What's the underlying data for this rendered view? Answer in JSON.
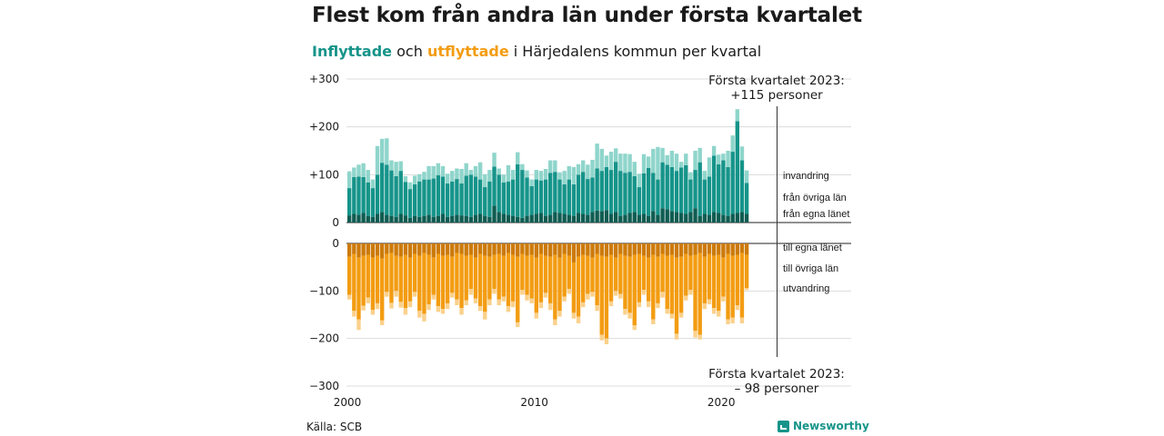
{
  "title": "Flest kom från andra län under första kvartalet",
  "subtitle": {
    "in_word": "Inflyttade",
    "mid1": " och ",
    "out_word": "utflyttade",
    "rest": " i Härjedalens kommun per kvartal"
  },
  "source": "Källa: SCB",
  "brand": "Newsworthy",
  "colors": {
    "in_local": "#0f5c52",
    "in_other": "#16948a",
    "in_immig": "#8fd5cb",
    "out_local": "#cc7a0a",
    "out_other": "#f39c12",
    "out_emig": "#fad18c"
  },
  "chart_data": {
    "type": "bar",
    "stacked": true,
    "x_ticks": [
      "2000",
      "2010",
      "2020"
    ],
    "x_ticks_years": [
      2000,
      2010,
      2020
    ],
    "first_year": 2000,
    "quarters_per_year": 4,
    "top_panel": {
      "y_range": [
        0,
        300
      ],
      "y_ticks": [
        0,
        100,
        200,
        300
      ],
      "y_tick_labels": [
        "0",
        "+100",
        "+200",
        "+300"
      ],
      "series": [
        {
          "name": "från egna länet",
          "values": [
            15,
            18,
            16,
            20,
            14,
            12,
            18,
            22,
            16,
            14,
            12,
            18,
            15,
            10,
            14,
            12,
            14,
            16,
            12,
            14,
            18,
            12,
            14,
            16,
            15,
            14,
            12,
            16,
            18,
            14,
            12,
            35,
            22,
            18,
            16,
            14,
            12,
            10,
            14,
            16,
            18,
            20,
            14,
            16,
            22,
            20,
            18,
            16,
            14,
            20,
            18,
            16,
            22,
            25,
            24,
            26,
            18,
            22,
            14,
            16,
            20,
            22,
            16,
            18,
            14,
            24,
            16,
            30,
            28,
            24,
            22,
            20,
            18,
            22,
            30,
            14,
            18,
            16,
            22,
            20,
            16,
            14,
            18,
            20,
            22,
            18
          ],
          "label": "från egna länet"
        },
        {
          "name": "från övriga län",
          "values": [
            57,
            77,
            80,
            75,
            70,
            60,
            82,
            103,
            105,
            95,
            85,
            90,
            70,
            60,
            66,
            74,
            76,
            74,
            80,
            85,
            78,
            70,
            72,
            75,
            67,
            84,
            88,
            80,
            72,
            60,
            74,
            82,
            78,
            66,
            70,
            76,
            110,
            100,
            80,
            60,
            72,
            68,
            76,
            88,
            84,
            70,
            62,
            74,
            66,
            80,
            88,
            75,
            72,
            88,
            84,
            90,
            92,
            105,
            94,
            88,
            86,
            75,
            58,
            85,
            100,
            80,
            74,
            96,
            93,
            92,
            86,
            95,
            102,
            68,
            80,
            112,
            72,
            80,
            118,
            102,
            114,
            102,
            130,
            192,
            108,
            65
          ],
          "label": "från övriga län"
        },
        {
          "name": "invandring",
          "values": [
            35,
            20,
            25,
            29,
            26,
            18,
            60,
            50,
            55,
            21,
            30,
            20,
            12,
            14,
            18,
            15,
            16,
            28,
            26,
            25,
            22,
            20,
            22,
            22,
            30,
            26,
            10,
            22,
            36,
            27,
            24,
            29,
            13,
            16,
            34,
            20,
            25,
            12,
            15,
            14,
            20,
            20,
            22,
            26,
            24,
            15,
            28,
            28,
            36,
            22,
            24,
            30,
            37,
            52,
            46,
            24,
            38,
            28,
            36,
            40,
            37,
            30,
            28,
            40,
            24,
            50,
            68,
            30,
            20,
            34,
            36,
            12,
            24,
            15,
            40,
            30,
            18,
            40,
            20,
            20,
            14,
            34,
            34,
            25,
            29,
            26
          ],
          "label": "invandring"
        }
      ],
      "annotation": [
        "Första kvartalet 2023:",
        "+115 personer"
      ]
    },
    "bottom_panel": {
      "y_range": [
        -300,
        0
      ],
      "y_ticks": [
        0,
        -100,
        -200,
        -300
      ],
      "y_tick_labels": [
        "0",
        "−100",
        "−200",
        "−300"
      ],
      "series": [
        {
          "name": "till egna länet",
          "values": [
            28,
            22,
            30,
            26,
            24,
            30,
            26,
            32,
            22,
            20,
            26,
            28,
            24,
            30,
            22,
            26,
            20,
            24,
            30,
            22,
            26,
            24,
            28,
            20,
            22,
            26,
            24,
            30,
            22,
            26,
            28,
            24,
            22,
            26,
            20,
            24,
            28,
            22,
            26,
            24,
            30,
            22,
            26,
            28,
            24,
            30,
            22,
            26,
            40,
            28,
            24,
            26,
            30,
            22,
            26,
            28,
            24,
            30,
            22,
            26,
            28,
            24,
            22,
            26,
            30,
            24,
            28,
            22,
            26,
            24,
            30,
            28,
            22,
            26,
            24,
            20,
            28,
            22,
            26,
            24,
            30,
            22,
            26,
            24,
            20,
            24
          ],
          "label": "till egna länet"
        },
        {
          "name": "till övriga län",
          "values": [
            80,
            120,
            130,
            105,
            90,
            110,
            100,
            130,
            80,
            105,
            74,
            95,
            112,
            92,
            80,
            116,
            128,
            104,
            78,
            110,
            112,
            102,
            76,
            98,
            114,
            94,
            72,
            86,
            110,
            118,
            90,
            72,
            96,
            86,
            112,
            98,
            138,
            76,
            82,
            92,
            116,
            102,
            78,
            98,
            136,
            112,
            90,
            70,
            106,
            126,
            100,
            80,
            72,
            108,
            166,
            172,
            98,
            70,
            84,
            112,
            118,
            148,
            102,
            72,
            92,
            136,
            98,
            80,
            112,
            124,
            160,
            118,
            88,
            72,
            160,
            172,
            98,
            96,
            110,
            118,
            82,
            138,
            130,
            106,
            136,
            70
          ],
          "label": "till övriga län"
        },
        {
          "name": "utvandring",
          "values": [
            10,
            12,
            22,
            10,
            12,
            10,
            12,
            10,
            10,
            12,
            12,
            12,
            14,
            12,
            10,
            14,
            16,
            12,
            10,
            12,
            10,
            12,
            10,
            12,
            14,
            10,
            12,
            10,
            10,
            16,
            12,
            10,
            12,
            10,
            12,
            12,
            10,
            10,
            12,
            10,
            12,
            12,
            10,
            14,
            12,
            12,
            10,
            10,
            12,
            14,
            10,
            12,
            10,
            12,
            12,
            12,
            10,
            10,
            10,
            12,
            12,
            10,
            10,
            10,
            12,
            10,
            10,
            12,
            10,
            10,
            12,
            10,
            10,
            10,
            14,
            10,
            12,
            10,
            12,
            12,
            10,
            10,
            12,
            10,
            12,
            4
          ],
          "label": "utvandring"
        }
      ],
      "annotation": [
        "Första kvartalet 2023:",
        "– 98 personer"
      ]
    }
  }
}
